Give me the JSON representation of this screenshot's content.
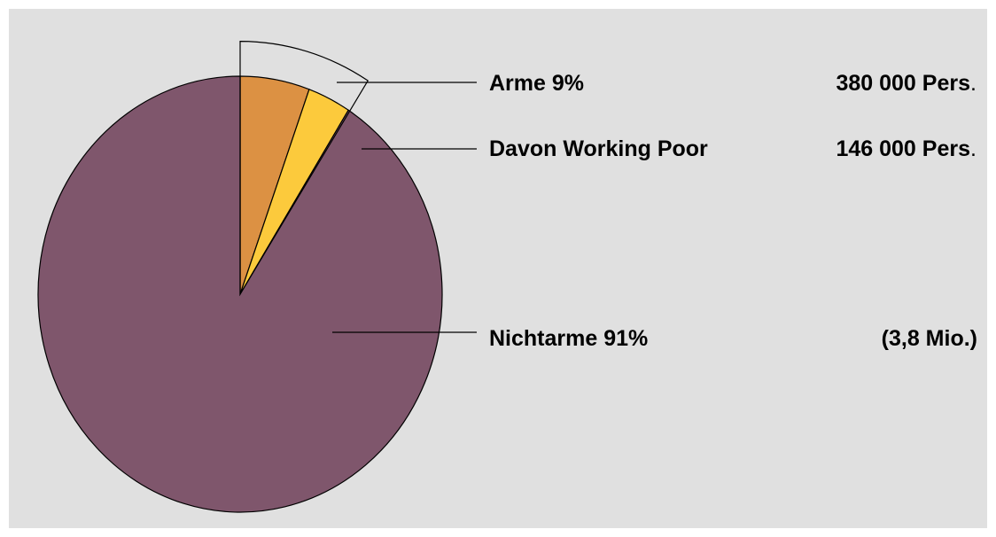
{
  "chart_data": {
    "type": "pie",
    "background": "#e0e0e0",
    "slices": [
      {
        "name": "Arme-excl-working-poor",
        "value": 5.55,
        "color": "#dc9143"
      },
      {
        "name": "Working-Poor",
        "value": 3.45,
        "color": "#fcca3c"
      },
      {
        "name": "Nichtarme",
        "value": 91.0,
        "color": "#7f566c"
      }
    ],
    "highlight_group": [
      "Arme-excl-working-poor",
      "Working-Poor"
    ],
    "labels": [
      {
        "slice": "highlight",
        "text": "Arme 9%",
        "value_text": "380 000 Pers",
        "suffix": "."
      },
      {
        "slice": "Working-Poor",
        "text": "Davon Working Poor",
        "value_text": "146 000 Pers",
        "suffix": "."
      },
      {
        "slice": "Nichtarme",
        "text": "Nichtarme 91%",
        "value_text": "(3,8 Mio.)",
        "suffix": ""
      }
    ]
  }
}
